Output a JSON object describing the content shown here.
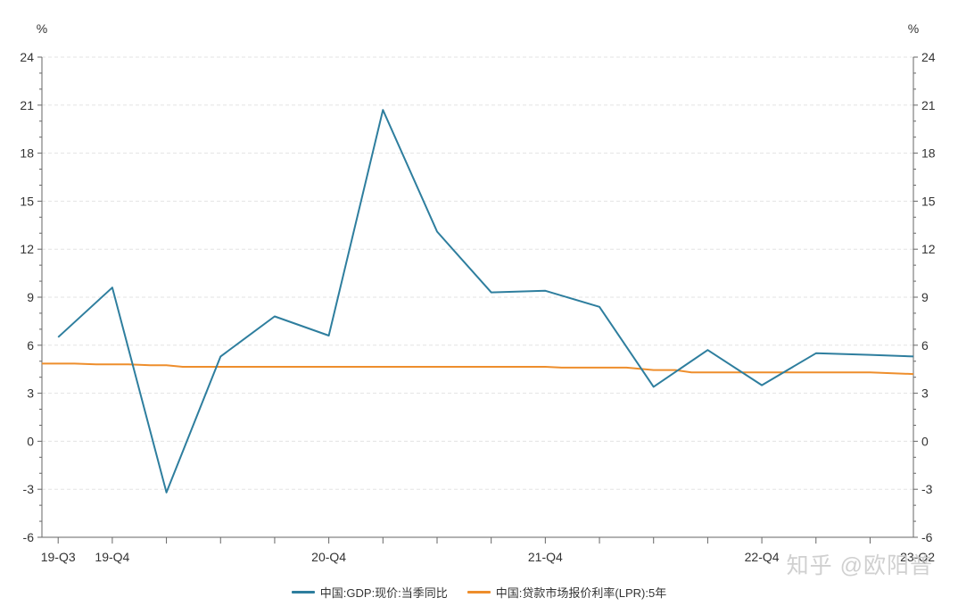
{
  "chart_data": {
    "type": "line",
    "left_unit": "%",
    "right_unit": "%",
    "ylim": [
      -6,
      24
    ],
    "yticks": [
      -6,
      -3,
      0,
      3,
      6,
      9,
      12,
      15,
      18,
      21,
      24
    ],
    "x_tick_labels": [
      {
        "index": 0,
        "label": "19-Q3"
      },
      {
        "index": 1,
        "label": "19-Q4"
      },
      {
        "index": 5,
        "label": "20-Q4"
      },
      {
        "index": 9,
        "label": "21-Q4"
      },
      {
        "index": 13,
        "label": "22-Q4"
      },
      {
        "index": 15.8,
        "label": "23-Q2"
      }
    ],
    "x_range": [
      -0.3,
      15.8
    ],
    "gdp_x": [
      0,
      1,
      2,
      3,
      4,
      5,
      6,
      7,
      8,
      9,
      10,
      11,
      12,
      13,
      14,
      15,
      15.8
    ],
    "gdp_values": [
      6.5,
      9.6,
      -3.2,
      5.3,
      7.8,
      6.6,
      20.7,
      13.1,
      9.3,
      9.4,
      8.4,
      3.4,
      5.7,
      3.5,
      5.5,
      5.4,
      5.3
    ],
    "lpr_x": [
      -0.3,
      0.3,
      0.7,
      1.3,
      1.7,
      2.0,
      2.3,
      3.0,
      4.0,
      5.0,
      6.0,
      7.0,
      8.0,
      9.0,
      9.3,
      10.0,
      10.5,
      11.0,
      11.4,
      11.7,
      12.0,
      13.0,
      14.0,
      15.0,
      15.8
    ],
    "lpr_values": [
      4.85,
      4.85,
      4.8,
      4.8,
      4.75,
      4.75,
      4.65,
      4.65,
      4.65,
      4.65,
      4.65,
      4.65,
      4.65,
      4.65,
      4.6,
      4.6,
      4.6,
      4.45,
      4.45,
      4.3,
      4.3,
      4.3,
      4.3,
      4.3,
      4.2
    ],
    "series": [
      {
        "name": "中国:GDP:现价:当季同比",
        "color": "#2e7e9e"
      },
      {
        "name": "中国:贷款市场报价利率(LPR):5年",
        "color": "#ee8e2c"
      }
    ],
    "grid": "horizontal-dashed",
    "legend_position": "bottom-center"
  },
  "watermark": "知乎 @欧阳普"
}
